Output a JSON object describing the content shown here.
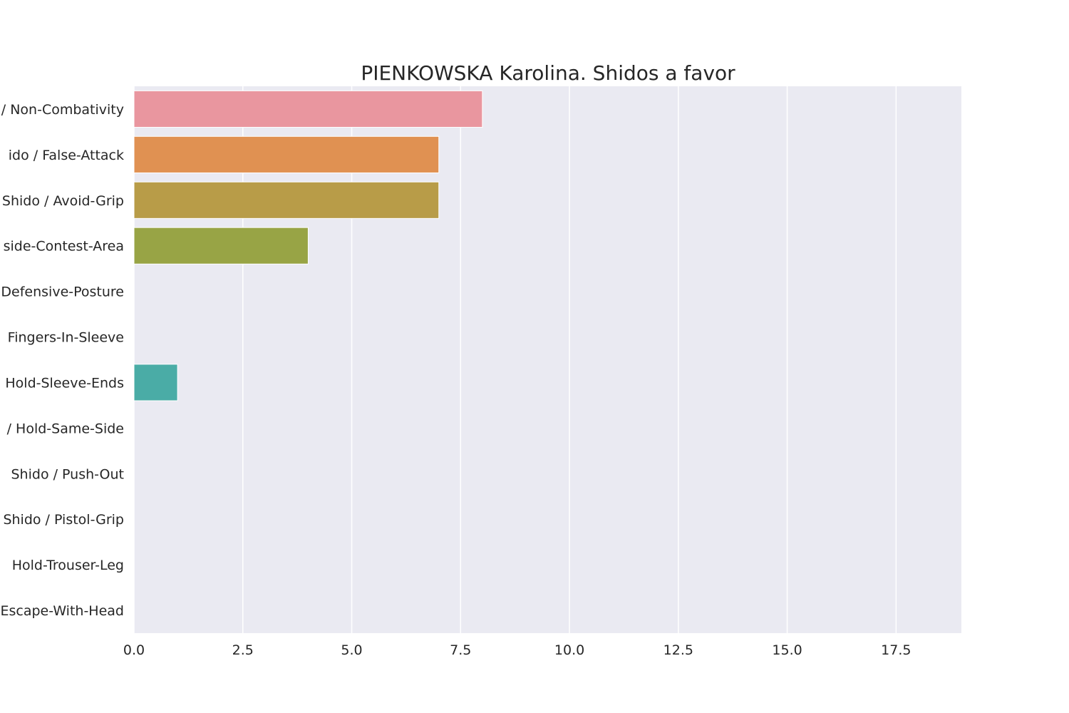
{
  "chart_data": {
    "type": "bar",
    "orientation": "horizontal",
    "title": "PIENKOWSKA Karolina. Shidos a favor",
    "xlabel": "",
    "ylabel": "",
    "xlim": [
      0,
      19
    ],
    "xticks": [
      0,
      2.5,
      5,
      7.5,
      10,
      12.5,
      15,
      17.5
    ],
    "xtick_labels": [
      "0.0",
      "2.5",
      "5.0",
      "7.5",
      "10.0",
      "12.5",
      "15.0",
      "17.5"
    ],
    "grid": true,
    "categories": [
      "Shido / Non-Combativity",
      "Shido / False-Attack",
      "Shido / Avoid-Grip",
      "Shido / Outside-Contest-Area",
      "Shido / Defensive-Posture",
      "Shido / Fingers-In-Sleeve",
      "Shido / Hold-Sleeve-Ends",
      "Shido / Hold-Same-Side",
      "Shido / Push-Out",
      "Shido / Pistol-Grip",
      "Shido / Hold-Trouser-Leg",
      "Shido / Escape-With-Head"
    ],
    "category_labels": [
      "/ Non-Combativity",
      "ido / False-Attack",
      "Shido / Avoid-Grip",
      "side-Contest-Area",
      "Defensive-Posture",
      "Fingers-In-Sleeve",
      "Hold-Sleeve-Ends",
      "/ Hold-Same-Side",
      "Shido / Push-Out",
      "Shido / Pistol-Grip",
      "Hold-Trouser-Leg",
      "Escape-With-Head"
    ],
    "values": [
      8,
      7,
      7,
      4,
      0,
      0,
      1,
      0,
      0,
      0,
      0,
      0
    ],
    "colors": [
      "#e9969f",
      "#e09152",
      "#b89c48",
      "#98a445",
      "#4fb05c",
      "#52ad90",
      "#4aaca6",
      "#55aac6",
      "#8cb0e6",
      "#b3a1eb",
      "#db8ee4",
      "#e992c4"
    ],
    "plot_background": "#eaeaf2",
    "grid_color": "#ffffff"
  }
}
